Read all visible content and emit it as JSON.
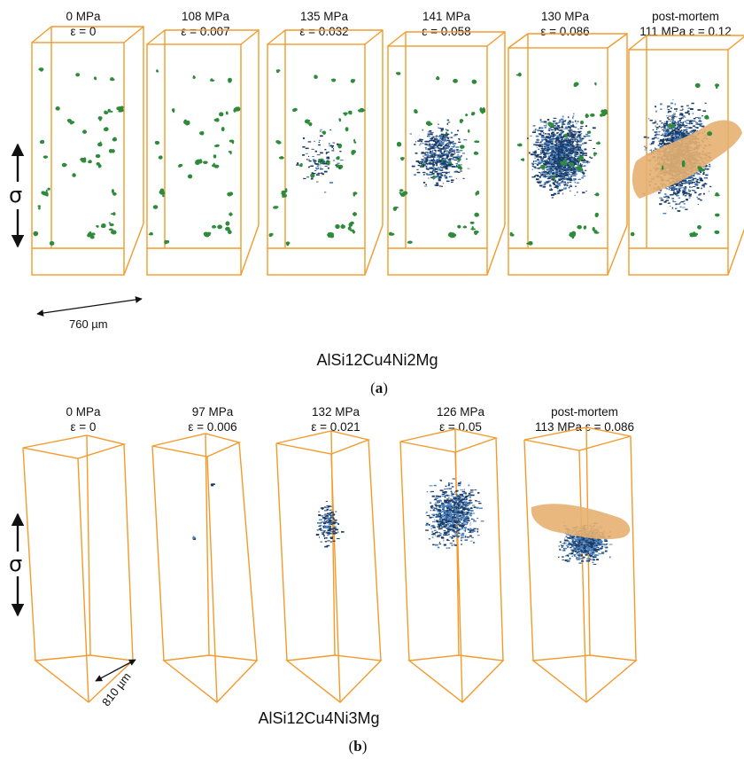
{
  "panel_a": {
    "title": "AlSi12Cu4Ni2Mg",
    "subcaption": {
      "open": "(",
      "letter": "a",
      "close": ")"
    },
    "scale_label": "760 µm",
    "sigma": "σ",
    "steps": [
      {
        "stress": "0 MPa",
        "strain": "ε = 0"
      },
      {
        "stress": "108 MPa",
        "strain": "ε = 0.007"
      },
      {
        "stress": "135 MPa",
        "strain": "ε = 0.032"
      },
      {
        "stress": "141 MPa",
        "strain": "ε = 0.058"
      },
      {
        "stress": "130 MPa",
        "strain": "ε = 0.086"
      },
      {
        "stress": "post-mortem",
        "strain": "111 MPa ε = 0.12"
      }
    ]
  },
  "panel_b": {
    "title": "AlSi12Cu4Ni3Mg",
    "subcaption": {
      "open": "(",
      "letter": "b",
      "close": ")"
    },
    "scale_label": "810 µm",
    "sigma": "σ",
    "steps": [
      {
        "stress": "0 MPa",
        "strain": "ε = 0"
      },
      {
        "stress": "97 MPa",
        "strain": "ε = 0.006"
      },
      {
        "stress": "132 MPa",
        "strain": "ε = 0.021"
      },
      {
        "stress": "126 MPa",
        "strain": "ε = 0.05"
      },
      {
        "stress": "post-mortem",
        "strain": "113 MPa ε = 0.086"
      }
    ]
  },
  "colors": {
    "box_outline": "#f39a2c",
    "intermetallic_green": "#2e8b3a",
    "damage_blue": "#1a3a66",
    "damage_light_blue": "#4a82c0",
    "crack_orange": "#e6b071"
  }
}
